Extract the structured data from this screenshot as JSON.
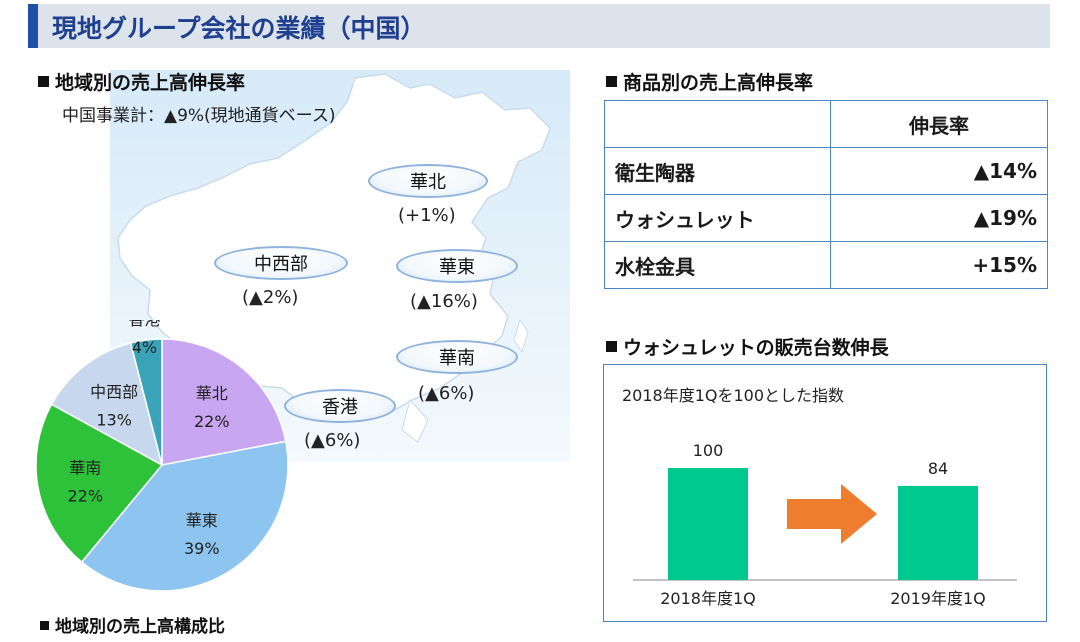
{
  "title": "現地グループ会社の業績（中国）",
  "region_section": {
    "heading": "地域別の売上高伸長率",
    "subtitle": "中国事業計：▲9%(現地通貨ベース)",
    "regions": [
      {
        "name": "華北",
        "value": "(+1%)"
      },
      {
        "name": "中西部",
        "value": "(▲2%)"
      },
      {
        "name": "華東",
        "value": "(▲16%)"
      },
      {
        "name": "華南",
        "value": "(▲6%)"
      },
      {
        "name": "香港",
        "value": "(▲6%)"
      }
    ]
  },
  "composition_section": {
    "heading": "地域別の売上高構成比"
  },
  "product_section": {
    "heading": "商品別の売上高伸長率",
    "column_header": "伸長率",
    "rows": [
      {
        "product": "衛生陶器",
        "rate": "▲14%"
      },
      {
        "product": "ウォシュレット",
        "rate": "▲19%"
      },
      {
        "product": "水栓金具",
        "rate": "+15%"
      }
    ]
  },
  "washlet_section": {
    "heading": "ウォシュレットの販売台数伸長"
  },
  "chart_data": [
    {
      "type": "pie",
      "categories": [
        "華北",
        "華東",
        "華南",
        "中西部",
        "香港"
      ],
      "values": [
        22,
        39,
        22,
        13,
        4
      ],
      "labels": [
        "22%",
        "39%",
        "22%",
        "13%",
        "4%"
      ],
      "colors": [
        "#c9a6f2",
        "#8ec5f0",
        "#2ec23a",
        "#c7d7ee",
        "#3aa3b8"
      ]
    },
    {
      "type": "bar",
      "title": "2018年度1Qを100とした指数",
      "categories": [
        "2018年度1Q",
        "2019年度1Q"
      ],
      "values": [
        100,
        84
      ],
      "value_labels": [
        "100",
        "84"
      ],
      "ylim": [
        0,
        100
      ],
      "bar_color": "#00c98f",
      "arrow_color": "#ef7d2e"
    }
  ]
}
